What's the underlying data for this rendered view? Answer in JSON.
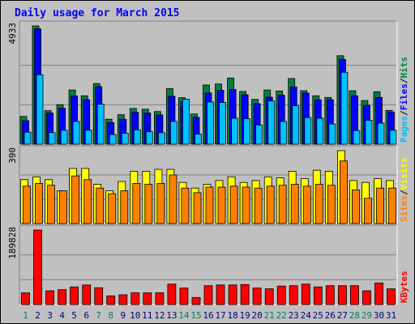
{
  "title": "Daily usage for March 2015",
  "colors": {
    "hits": "#008040",
    "files": "#0000ff",
    "pages": "#00c0ff",
    "visits": "#ffff00",
    "sites": "#ff8000",
    "kbytes": "#ff0000",
    "weekend_label": "#00805c",
    "weekday_label": "#000080",
    "title": "#0000ff"
  },
  "chart_data": [
    {
      "type": "bar",
      "categories": [
        "1",
        "2",
        "3",
        "4",
        "5",
        "6",
        "7",
        "8",
        "9",
        "10",
        "11",
        "12",
        "13",
        "14",
        "15",
        "16",
        "17",
        "18",
        "19",
        "20",
        "21",
        "22",
        "23",
        "24",
        "25",
        "26",
        "27",
        "28",
        "29",
        "30",
        "31"
      ],
      "weekend_days": [
        "1",
        "7",
        "8",
        "14",
        "15",
        "21",
        "22",
        "28",
        "29"
      ],
      "ytick": "4933",
      "ylim": [
        0,
        4933
      ],
      "series": [
        {
          "name": "Hits",
          "values": [
            1160,
            4933,
            1400,
            1650,
            2260,
            2020,
            2530,
            1040,
            1230,
            1490,
            1460,
            1360,
            2320,
            1940,
            1260,
            2470,
            2510,
            2760,
            2200,
            1870,
            2260,
            2220,
            2740,
            2230,
            2020,
            1950,
            3690,
            2230,
            1820,
            2190,
            1410
          ]
        },
        {
          "name": "Files",
          "values": [
            980,
            4810,
            1300,
            1500,
            2010,
            1860,
            2400,
            900,
            1040,
            1330,
            1300,
            1220,
            2000,
            1780,
            1120,
            2140,
            2250,
            2280,
            2060,
            1690,
            1960,
            2040,
            2390,
            2130,
            1850,
            1850,
            3540,
            2020,
            1620,
            1950,
            1340
          ]
        },
        {
          "name": "Pages",
          "values": [
            500,
            2900,
            480,
            580,
            950,
            580,
            1670,
            400,
            460,
            600,
            520,
            480,
            950,
            1880,
            420,
            1760,
            1740,
            1080,
            1060,
            800,
            1800,
            950,
            1600,
            1110,
            1080,
            840,
            3000,
            570,
            1000,
            880,
            580
          ]
        }
      ],
      "legend": [
        "Pages",
        "Files",
        "Hits"
      ]
    },
    {
      "type": "bar",
      "categories": [
        "1",
        "2",
        "3",
        "4",
        "5",
        "6",
        "7",
        "8",
        "9",
        "10",
        "11",
        "12",
        "13",
        "14",
        "15",
        "16",
        "17",
        "18",
        "19",
        "20",
        "21",
        "22",
        "23",
        "24",
        "25",
        "26",
        "27",
        "28",
        "29",
        "30",
        "31"
      ],
      "ytick": "390",
      "ylim": [
        0,
        390
      ],
      "series": [
        {
          "name": "Visits",
          "values": [
            235,
            250,
            235,
            175,
            295,
            295,
            210,
            175,
            225,
            280,
            280,
            290,
            290,
            220,
            190,
            210,
            230,
            250,
            220,
            230,
            250,
            245,
            280,
            240,
            285,
            280,
            390,
            230,
            220,
            240,
            230
          ]
        },
        {
          "name": "Sites",
          "values": [
            200,
            215,
            205,
            175,
            255,
            235,
            190,
            160,
            175,
            215,
            210,
            215,
            260,
            190,
            165,
            195,
            195,
            200,
            195,
            190,
            200,
            205,
            210,
            200,
            210,
            205,
            335,
            180,
            135,
            190,
            190
          ]
        }
      ],
      "legend": [
        "Sites",
        "Visits"
      ]
    },
    {
      "type": "bar",
      "categories": [
        "1",
        "2",
        "3",
        "4",
        "5",
        "6",
        "7",
        "8",
        "9",
        "10",
        "11",
        "12",
        "13",
        "14",
        "15",
        "16",
        "17",
        "18",
        "19",
        "20",
        "21",
        "22",
        "23",
        "24",
        "25",
        "26",
        "27",
        "28",
        "29",
        "30",
        "31"
      ],
      "ytick": "189828",
      "ylim": [
        0,
        189828
      ],
      "series": [
        {
          "name": "KBytes",
          "values": [
            30000,
            189828,
            35000,
            38000,
            45000,
            50000,
            43000,
            22000,
            25000,
            30000,
            30000,
            30000,
            52000,
            42000,
            18000,
            48000,
            50000,
            50000,
            51000,
            42000,
            40000,
            47000,
            48000,
            52000,
            45000,
            48000,
            48000,
            48000,
            35000,
            55000,
            40000
          ]
        }
      ],
      "legend": [
        "KBytes"
      ]
    }
  ]
}
